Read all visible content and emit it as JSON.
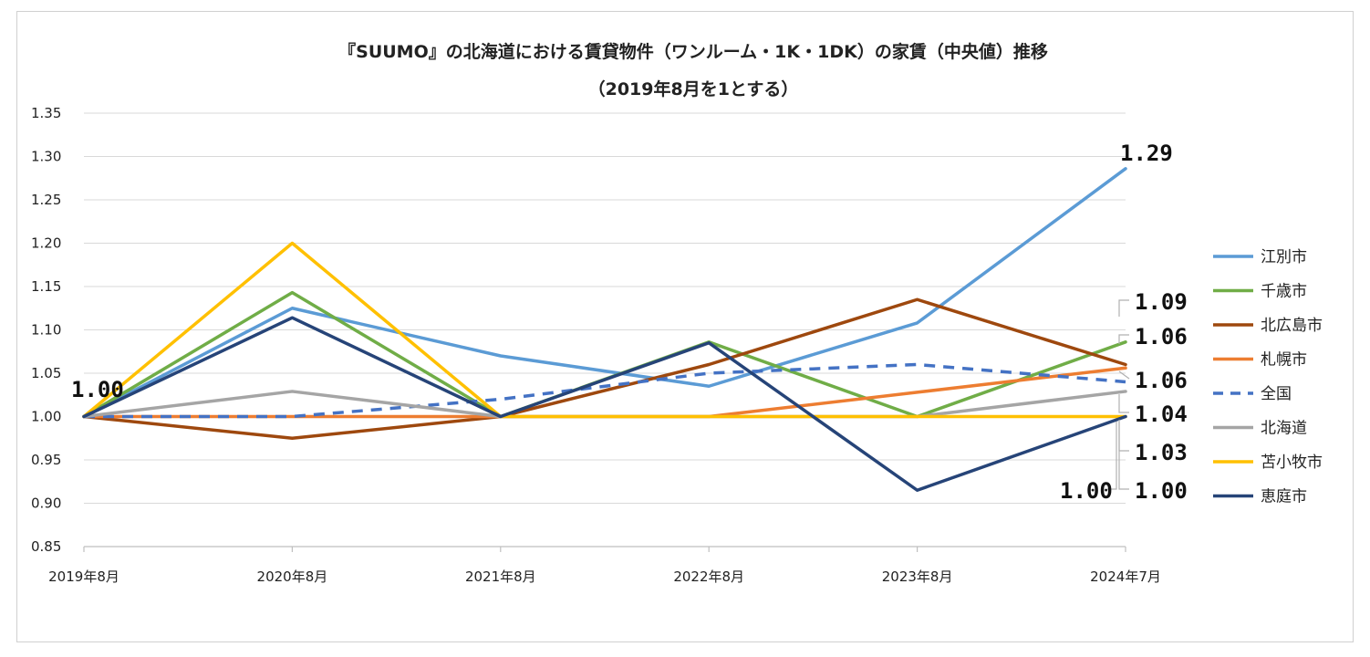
{
  "chart_data": {
    "type": "line",
    "title": "『SUUMO』の北海道における賃貸物件（ワンルーム・1K・1DK）の家賃（中央値）推移",
    "subtitle": "（2019年8月を1とする）",
    "categories": [
      "2019年8月",
      "2020年8月",
      "2021年8月",
      "2022年8月",
      "2023年8月",
      "2024年7月"
    ],
    "ylim": [
      0.85,
      1.35
    ],
    "yticks": [
      "0.85",
      "0.90",
      "0.95",
      "1.00",
      "1.05",
      "1.10",
      "1.15",
      "1.20",
      "1.25",
      "1.30",
      "1.35"
    ],
    "grid": true,
    "legend": "right",
    "series": [
      {
        "name": "江別市",
        "color": "#5b9bd5",
        "dash": false,
        "values": [
          1.0,
          1.125,
          1.07,
          1.035,
          1.108,
          1.286
        ]
      },
      {
        "name": "千歳市",
        "color": "#70ad47",
        "dash": false,
        "values": [
          1.0,
          1.143,
          1.0,
          1.086,
          1.0,
          1.086
        ]
      },
      {
        "name": "北広島市",
        "color": "#9e480e",
        "dash": false,
        "values": [
          1.0,
          0.975,
          1.0,
          1.06,
          1.135,
          1.06
        ]
      },
      {
        "name": "札幌市",
        "color": "#ed7d31",
        "dash": false,
        "values": [
          1.0,
          1.0,
          1.0,
          1.0,
          1.028,
          1.056
        ]
      },
      {
        "name": "全国",
        "color": "#4472c4",
        "dash": true,
        "values": [
          1.0,
          1.0,
          1.02,
          1.05,
          1.06,
          1.04
        ]
      },
      {
        "name": "北海道",
        "color": "#a5a5a5",
        "dash": false,
        "values": [
          1.0,
          1.029,
          1.0,
          1.0,
          1.0,
          1.029
        ]
      },
      {
        "name": "苫小牧市",
        "color": "#ffc000",
        "dash": false,
        "values": [
          1.0,
          1.2,
          1.0,
          1.0,
          1.0,
          1.0
        ]
      },
      {
        "name": "恵庭市",
        "color": "#264478",
        "dash": false,
        "values": [
          1.0,
          1.114,
          1.0,
          1.085,
          0.915,
          1.0
        ]
      }
    ],
    "annotations": {
      "start": "1.00",
      "peak": "1.29",
      "end_labels": [
        "1.09",
        "1.06",
        "1.06",
        "1.04",
        "1.03",
        "1.00",
        "1.00"
      ]
    }
  }
}
